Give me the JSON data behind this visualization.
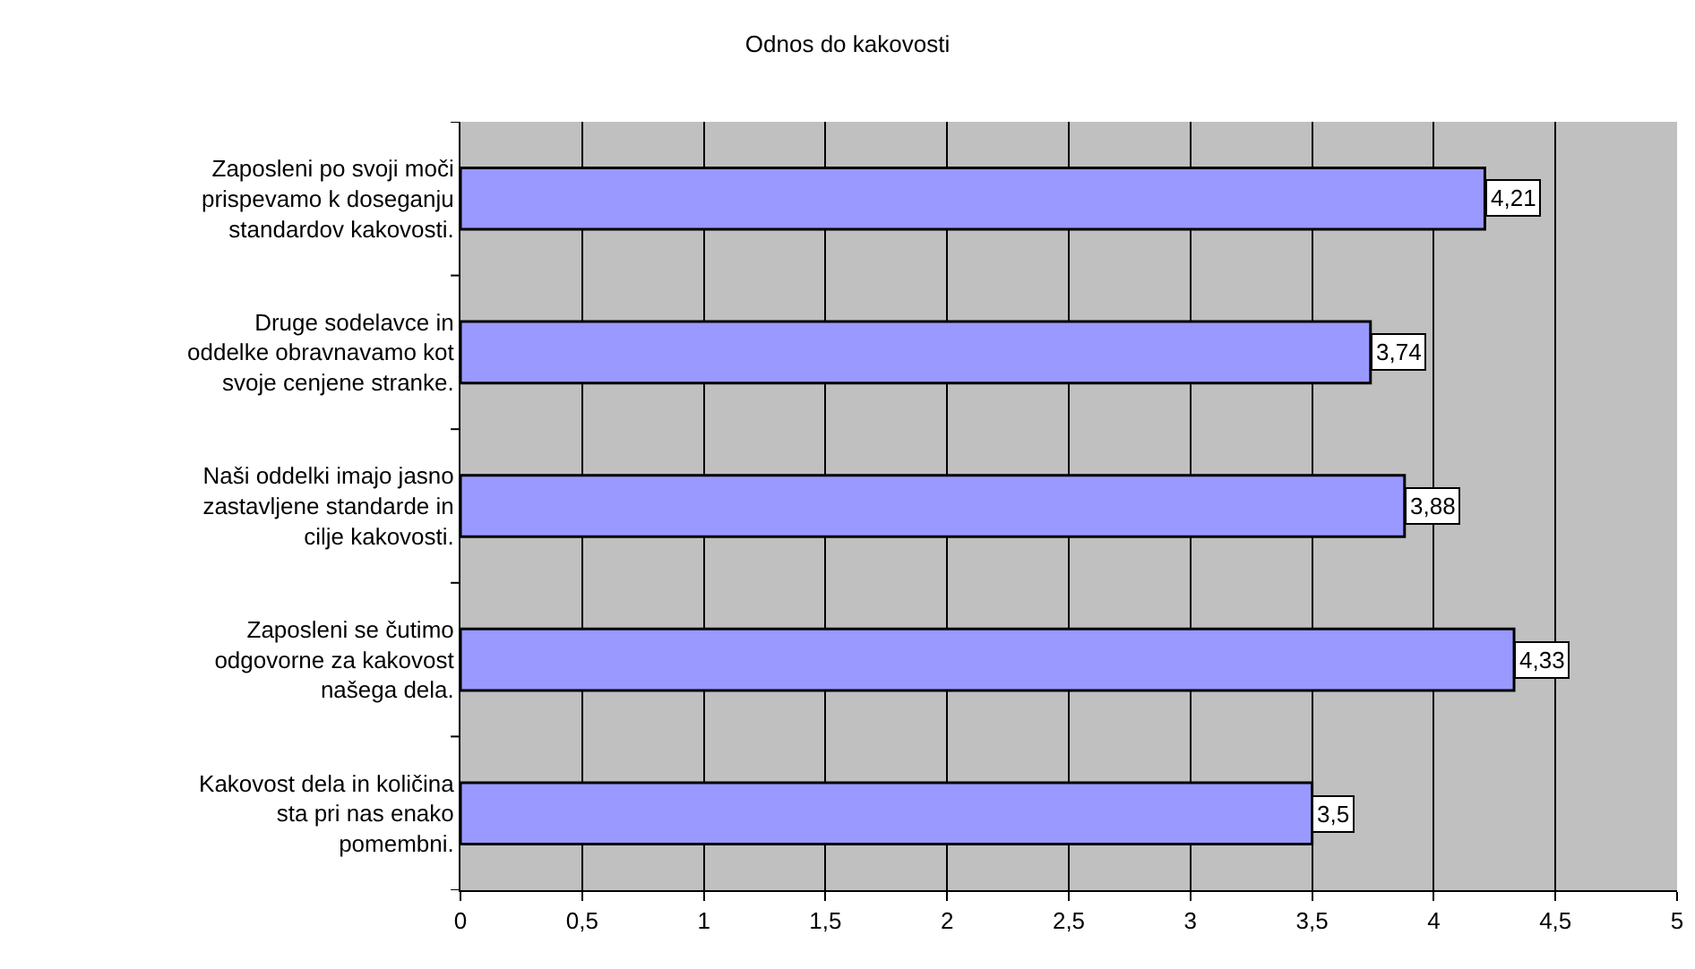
{
  "chart_data": {
    "type": "bar",
    "orientation": "horizontal",
    "title": "Odnos do kakovosti",
    "categories": [
      "Zaposleni po svoji moči prispevamo k doseganju standardov kakovosti.",
      "Druge sodelavce in oddelke obravnavamo kot svoje cenjene stranke.",
      "Naši oddelki imajo jasno zastavljene standarde in cilje kakovosti.",
      "Zaposleni se čutimo odgovorne za kakovost našega dela.",
      "Kakovost dela in količina sta pri nas enako pomembni."
    ],
    "values": [
      4.21,
      3.74,
      3.88,
      4.33,
      3.5
    ],
    "value_labels": [
      "4,21",
      "3,74",
      "3,88",
      "4,33",
      "3,5"
    ],
    "color": "#9999ff",
    "xlim": [
      0,
      5
    ],
    "xticks": [
      0,
      {
        "value": 0.5,
        "label": "0,5"
      },
      1,
      {
        "value": 1.5,
        "label": "1,5"
      },
      2,
      {
        "value": 2.5,
        "label": "2,5"
      },
      3,
      {
        "value": 3.5,
        "label": "3,5"
      },
      4,
      {
        "value": 4.5,
        "label": "4,5"
      },
      5
    ],
    "grid": "x"
  }
}
